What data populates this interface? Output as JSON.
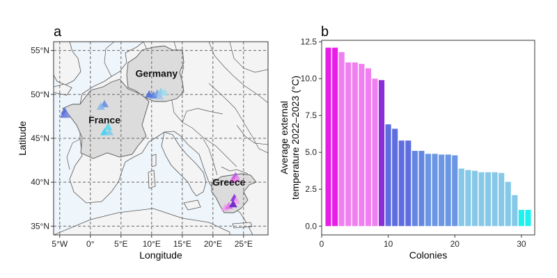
{
  "panels": {
    "a": {
      "label": "a"
    },
    "b": {
      "label": "b"
    }
  },
  "chart_data": [
    {
      "panel": "a",
      "type": "scatter",
      "xlabel": "Longitude",
      "ylabel": "Latitude",
      "xlim": [
        -6,
        29
      ],
      "ylim": [
        34,
        56
      ],
      "x_ticks": [
        -5,
        0,
        5,
        10,
        15,
        20,
        25
      ],
      "x_tick_labels": [
        "5°W",
        "0°",
        "5°E",
        "10°E",
        "15°E",
        "20°E",
        "25°E"
      ],
      "y_ticks": [
        35,
        40,
        45,
        50,
        55
      ],
      "y_tick_labels": [
        "35°N",
        "40°N",
        "45°N",
        "50°N",
        "55°N"
      ],
      "grid": "dashed",
      "country_labels": [
        {
          "text": "Germany",
          "lon": 10.8,
          "lat": 52.0
        },
        {
          "text": "France",
          "lon": 2.3,
          "lat": 46.7
        },
        {
          "text": "Greece",
          "lon": 22.6,
          "lat": 39.6
        }
      ],
      "colors": {
        "sea": "#eef5fb",
        "land": "#f4f4f4",
        "highlight": "#dcdcdc",
        "border": "#555555",
        "grid": "#666666"
      },
      "points": [
        {
          "lon": -4.2,
          "lat": 48.1,
          "color": "#5a6fd8"
        },
        {
          "lon": -4.3,
          "lat": 47.7,
          "color": "#5a6fd8"
        },
        {
          "lon": -3.9,
          "lat": 47.7,
          "color": "#7a88e0"
        },
        {
          "lon": 2.3,
          "lat": 48.9,
          "color": "#6a8ee0"
        },
        {
          "lon": 1.7,
          "lat": 48.6,
          "color": "#8ab8e8"
        },
        {
          "lon": 2.9,
          "lat": 46.3,
          "color": "#5fd8f0"
        },
        {
          "lon": 2.3,
          "lat": 45.7,
          "color": "#3ed3f2"
        },
        {
          "lon": 3.1,
          "lat": 45.7,
          "color": "#7fcde8"
        },
        {
          "lon": 9.6,
          "lat": 50.0,
          "color": "#4d6bd6"
        },
        {
          "lon": 10.3,
          "lat": 49.9,
          "color": "#5a80dc"
        },
        {
          "lon": 10.9,
          "lat": 50.1,
          "color": "#7aa0e4"
        },
        {
          "lon": 11.5,
          "lat": 50.3,
          "color": "#8ecfe8"
        },
        {
          "lon": 12.1,
          "lat": 50.2,
          "color": "#a3dcec"
        },
        {
          "lon": 11.3,
          "lat": 49.8,
          "color": "#9fc8ea"
        },
        {
          "lon": 23.7,
          "lat": 40.7,
          "color": "#b058e0"
        },
        {
          "lon": 23.3,
          "lat": 40.3,
          "color": "#e060e8"
        },
        {
          "lon": 23.9,
          "lat": 40.4,
          "color": "#f090ec"
        },
        {
          "lon": 22.0,
          "lat": 37.1,
          "color": "#f0a0ec"
        },
        {
          "lon": 22.6,
          "lat": 37.3,
          "color": "#e070e8"
        },
        {
          "lon": 23.5,
          "lat": 38.2,
          "color": "#8a2bd6"
        },
        {
          "lon": 23.8,
          "lat": 37.9,
          "color": "#f2a6ee"
        },
        {
          "lon": 23.3,
          "lat": 37.5,
          "color": "#6a1bc8"
        }
      ]
    },
    {
      "panel": "b",
      "type": "bar",
      "xlabel": "Colonies",
      "ylabel": "Average external temperature 2022–2023 (°C)",
      "ylabel_lines": [
        "Average external",
        "temperature 2022–2023 (°C)"
      ],
      "xlim": [
        0,
        32
      ],
      "ylim": [
        -0.6,
        12.6
      ],
      "x_ticks": [
        0,
        10,
        20,
        30
      ],
      "y_ticks": [
        0.0,
        2.5,
        5.0,
        7.5,
        10.0,
        12.5
      ],
      "y_tick_labels": [
        "0.0",
        "2.5",
        "5.0",
        "7.5",
        "10.0",
        "12.5"
      ],
      "grid": false,
      "x": [
        1,
        2,
        3,
        4,
        5,
        6,
        7,
        8,
        9,
        10,
        11,
        12,
        13,
        14,
        15,
        16,
        17,
        18,
        19,
        20,
        21,
        22,
        23,
        24,
        25,
        26,
        27,
        28,
        29,
        30,
        31
      ],
      "values": [
        12.1,
        12.1,
        11.8,
        11.1,
        11.1,
        11.0,
        10.7,
        10.0,
        9.9,
        6.9,
        6.6,
        5.8,
        5.8,
        5.1,
        5.1,
        4.9,
        4.9,
        4.85,
        4.85,
        4.8,
        3.9,
        3.8,
        3.75,
        3.65,
        3.65,
        3.65,
        3.6,
        3.0,
        2.1,
        1.1,
        1.1
      ],
      "bar_colors": [
        "#e61ee6",
        "#e61ee6",
        "#f07ff0",
        "#f07ff0",
        "#f07ff0",
        "#f07ff0",
        "#f07ff0",
        "#f07ff0",
        "#8a2fd8",
        "#5e6ee0",
        "#5e6ee0",
        "#5e6ee0",
        "#5e6ee0",
        "#6286e2",
        "#6286e2",
        "#6a96e4",
        "#6a96e4",
        "#6a96e4",
        "#6a96e4",
        "#6a96e4",
        "#86c8e8",
        "#86c8e8",
        "#86c8e8",
        "#86c8e8",
        "#86c8e8",
        "#86c8e8",
        "#86c8e8",
        "#86c8e8",
        "#86c8e8",
        "#1ff0f0",
        "#1ff0f0"
      ]
    }
  ]
}
